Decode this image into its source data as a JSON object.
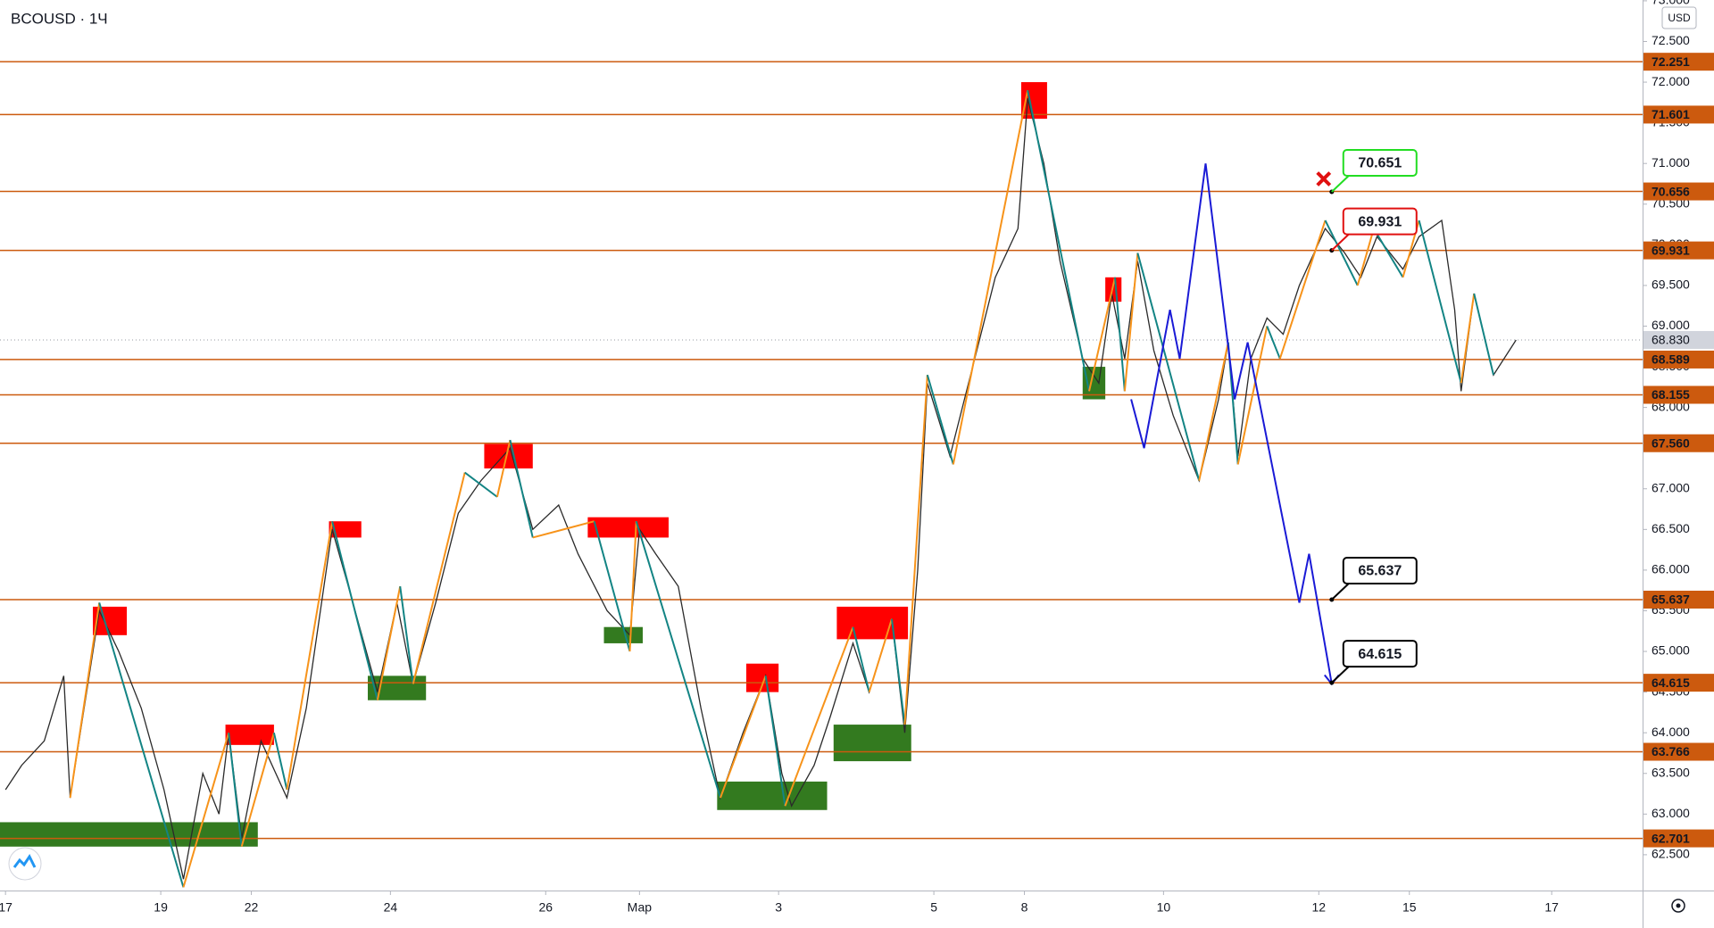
{
  "title": "BCOUSD · 1Ч",
  "chart_data": {
    "type": "line",
    "currency": "USD",
    "xlim": [
      -1.7,
      506.1
    ],
    "ylim": [
      62.06,
      73.01
    ],
    "xticks": [
      {
        "value": 0,
        "label": "17"
      },
      {
        "value": 48,
        "label": "19"
      },
      {
        "value": 76,
        "label": "22"
      },
      {
        "value": 119,
        "label": "24"
      },
      {
        "value": 167,
        "label": "26"
      },
      {
        "value": 196,
        "label": "Мар"
      },
      {
        "value": 239,
        "label": "3"
      },
      {
        "value": 287,
        "label": "5"
      },
      {
        "value": 315,
        "label": "8"
      },
      {
        "value": 358,
        "label": "10"
      },
      {
        "value": 406,
        "label": "12"
      },
      {
        "value": 434,
        "label": "15"
      },
      {
        "value": 478,
        "label": "17"
      }
    ],
    "yticks": [
      {
        "value": 62.5,
        "label": "62.500"
      },
      {
        "value": 63,
        "label": "63.000"
      },
      {
        "value": 63.5,
        "label": "63.500"
      },
      {
        "value": 64,
        "label": "64.000"
      },
      {
        "value": 64.5,
        "label": "64.500"
      },
      {
        "value": 65,
        "label": "65.000"
      },
      {
        "value": 65.5,
        "label": "65.500"
      },
      {
        "value": 66,
        "label": "66.000"
      },
      {
        "value": 66.5,
        "label": "66.500"
      },
      {
        "value": 67,
        "label": "67.000"
      },
      {
        "value": 67.5,
        "label": "67.500"
      },
      {
        "value": 68,
        "label": "68.000"
      },
      {
        "value": 68.5,
        "label": "68.500"
      },
      {
        "value": 69,
        "label": "69.000"
      },
      {
        "value": 69.5,
        "label": "69.500"
      },
      {
        "value": 70,
        "label": "70.000"
      },
      {
        "value": 70.5,
        "label": "70.500"
      },
      {
        "value": 71,
        "label": "71.000"
      },
      {
        "value": 71.5,
        "label": "71.500"
      },
      {
        "value": 72,
        "label": "72.000"
      },
      {
        "value": 72.5,
        "label": "72.500"
      },
      {
        "value": 73,
        "label": "73.000"
      }
    ],
    "price": {
      "color": "#2a2a2a",
      "x": [
        0,
        5,
        12,
        18,
        20,
        29,
        35,
        42,
        49,
        55,
        61,
        66,
        69,
        73,
        79,
        87,
        93,
        101,
        106,
        115,
        121,
        126,
        133,
        140,
        147,
        156,
        163,
        171,
        177,
        186,
        193,
        196,
        201,
        208,
        215,
        221,
        228,
        235,
        240,
        243,
        250,
        255,
        262,
        267,
        274,
        278,
        282,
        285,
        292,
        299,
        306,
        313,
        316,
        321,
        326,
        333,
        338,
        342,
        346,
        350,
        355,
        361,
        369,
        375,
        378,
        381,
        385,
        390,
        395,
        400,
        408,
        414,
        419,
        424,
        432,
        437,
        444,
        448,
        450,
        454,
        460,
        467
      ],
      "values": [
        63.3,
        63.6,
        63.9,
        64.7,
        63.2,
        65.5,
        65.0,
        64.3,
        63.3,
        62.2,
        63.5,
        63.0,
        64.0,
        62.7,
        63.9,
        63.2,
        64.3,
        66.5,
        65.8,
        64.5,
        65.6,
        64.6,
        65.6,
        66.7,
        67.1,
        67.5,
        66.5,
        66.8,
        66.2,
        65.5,
        65.2,
        66.5,
        66.2,
        65.8,
        64.3,
        63.2,
        64.0,
        64.7,
        63.5,
        63.1,
        63.6,
        64.2,
        65.1,
        64.5,
        65.4,
        64.0,
        66.0,
        68.3,
        67.4,
        68.5,
        69.6,
        70.2,
        71.8,
        71.0,
        69.8,
        68.6,
        68.3,
        69.4,
        68.6,
        69.8,
        68.7,
        67.9,
        67.1,
        68.1,
        68.8,
        67.4,
        68.6,
        69.1,
        68.9,
        69.5,
        70.2,
        69.9,
        69.6,
        70.1,
        69.7,
        70.1,
        70.3,
        69.2,
        68.2,
        69.4,
        68.4,
        68.83
      ]
    },
    "zigzag": {
      "colors": [
        "#f7931a",
        "#138484"
      ],
      "x": [
        20,
        29,
        55,
        69,
        73,
        83,
        87,
        101,
        115,
        122,
        126,
        142,
        152,
        156,
        163,
        182,
        193,
        195,
        221,
        235,
        241,
        262,
        267,
        274,
        278,
        285,
        293,
        316,
        335,
        343,
        346,
        350,
        369,
        378,
        381,
        390,
        394,
        408,
        418,
        423,
        432,
        437,
        450,
        454,
        460
      ],
      "values": [
        63.2,
        65.6,
        62.1,
        64.0,
        62.6,
        64.0,
        63.3,
        66.6,
        64.4,
        65.8,
        64.6,
        67.2,
        66.9,
        67.6,
        66.4,
        66.6,
        65.0,
        66.6,
        63.2,
        64.7,
        63.1,
        65.3,
        64.5,
        65.4,
        64.1,
        68.4,
        67.3,
        71.9,
        68.2,
        69.6,
        68.2,
        69.9,
        67.1,
        68.8,
        67.3,
        69.0,
        68.6,
        70.3,
        69.5,
        70.2,
        69.6,
        70.3,
        68.3,
        69.4,
        68.4
      ]
    },
    "forecast": {
      "color": "#1a1ad6",
      "x": [
        348,
        352,
        360,
        363,
        371,
        380,
        384,
        400,
        403,
        410
      ],
      "values": [
        68.1,
        67.5,
        69.2,
        68.6,
        71.0,
        68.1,
        68.8,
        65.6,
        66.2,
        64.6
      ]
    },
    "zones": [
      {
        "x": [
          27,
          37.5
        ],
        "y": [
          65.2,
          65.55
        ],
        "color": "#ff0000"
      },
      {
        "x": [
          68,
          83
        ],
        "y": [
          63.85,
          64.1
        ],
        "color": "#ff0000"
      },
      {
        "x": [
          100,
          110
        ],
        "y": [
          66.4,
          66.6
        ],
        "color": "#ff0000"
      },
      {
        "x": [
          148,
          163
        ],
        "y": [
          67.25,
          67.55
        ],
        "color": "#ff0000"
      },
      {
        "x": [
          180,
          205
        ],
        "y": [
          66.4,
          66.65
        ],
        "color": "#ff0000"
      },
      {
        "x": [
          229,
          239
        ],
        "y": [
          64.5,
          64.85
        ],
        "color": "#ff0000"
      },
      {
        "x": [
          257,
          279
        ],
        "y": [
          65.15,
          65.55
        ],
        "color": "#ff0000"
      },
      {
        "x": [
          314,
          322
        ],
        "y": [
          71.55,
          72.0
        ],
        "color": "#ff0000"
      },
      {
        "x": [
          340,
          345
        ],
        "y": [
          69.3,
          69.6
        ],
        "color": "#ff0000"
      },
      {
        "x": [
          -1.7,
          78
        ],
        "y": [
          62.6,
          62.9
        ],
        "color": "#337a1f"
      },
      {
        "x": [
          112,
          130
        ],
        "y": [
          64.4,
          64.7
        ],
        "color": "#337a1f"
      },
      {
        "x": [
          185,
          197
        ],
        "y": [
          65.1,
          65.3
        ],
        "color": "#337a1f"
      },
      {
        "x": [
          220,
          254
        ],
        "y": [
          63.05,
          63.4
        ],
        "color": "#337a1f"
      },
      {
        "x": [
          256,
          280
        ],
        "y": [
          63.65,
          64.1
        ],
        "color": "#337a1f"
      },
      {
        "x": [
          333,
          340
        ],
        "y": [
          68.1,
          68.5
        ],
        "color": "#337a1f"
      }
    ],
    "level_color": "#cc5a0e",
    "levels": [
      72.251,
      71.601,
      70.656,
      69.931,
      68.589,
      68.155,
      {
        "value": 67.56,
        "label": "67.560"
      },
      65.637,
      64.615,
      63.766,
      62.701
    ],
    "last_price": {
      "value": 68.83,
      "label": "68.830"
    },
    "callouts": [
      {
        "x": 410,
        "y": 70.651,
        "color": "#22dd22"
      },
      {
        "x": 410,
        "y": 69.931,
        "color": "#e01010"
      },
      {
        "x": 410,
        "y": 65.637,
        "color": "#000000"
      },
      {
        "x": 410,
        "y": 64.615,
        "color": "#000000"
      }
    ],
    "cross": {
      "x": 407.5,
      "y": 70.81,
      "color": "#e01010"
    }
  }
}
